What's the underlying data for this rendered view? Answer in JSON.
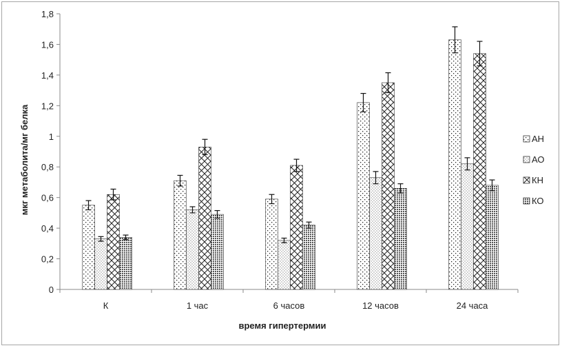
{
  "chart_data": {
    "type": "bar",
    "title": "",
    "xlabel": "время гипертермии",
    "ylabel": "мкг метаболита/мг белка",
    "categories": [
      "К",
      "1 час",
      "6 часов",
      "12 часов",
      "24 часа"
    ],
    "ylim": [
      0,
      1.8
    ],
    "yticks": [
      0,
      0.2,
      0.4,
      0.6,
      0.8,
      1,
      1.2,
      1.4,
      1.6,
      1.8
    ],
    "ytick_labels": [
      "0",
      "0,2",
      "0,4",
      "0,6",
      "0,8",
      "1",
      "1,2",
      "1,4",
      "1,6",
      "1,8"
    ],
    "grid": false,
    "legend_position": "right",
    "series": [
      {
        "name": "АН",
        "pattern": "dots-sparse",
        "values": [
          0.55,
          0.71,
          0.59,
          1.22,
          1.63
        ],
        "errors": [
          0.03,
          0.035,
          0.03,
          0.06,
          0.085
        ]
      },
      {
        "name": "АО",
        "pattern": "dots-fine",
        "values": [
          0.33,
          0.52,
          0.32,
          0.73,
          0.82
        ],
        "errors": [
          0.015,
          0.02,
          0.015,
          0.04,
          0.04
        ]
      },
      {
        "name": "КН",
        "pattern": "crosshatch",
        "values": [
          0.62,
          0.93,
          0.81,
          1.35,
          1.54
        ],
        "errors": [
          0.035,
          0.05,
          0.04,
          0.065,
          0.08
        ]
      },
      {
        "name": "КО",
        "pattern": "grid-dense",
        "values": [
          0.34,
          0.49,
          0.42,
          0.66,
          0.68
        ],
        "errors": [
          0.015,
          0.025,
          0.02,
          0.03,
          0.035
        ]
      }
    ]
  }
}
